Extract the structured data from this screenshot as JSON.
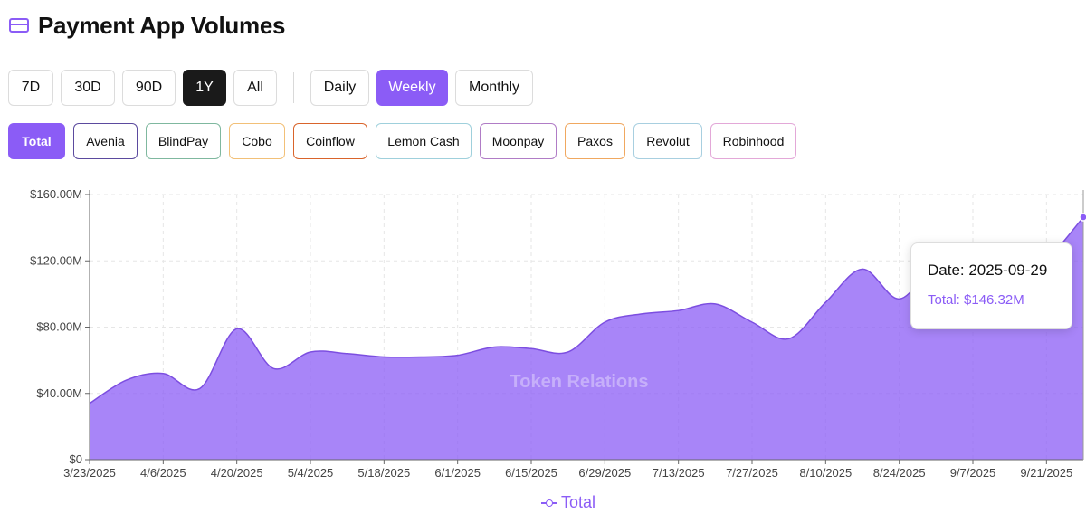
{
  "header": {
    "title": "Payment App Volumes",
    "icon": "credit-card-icon"
  },
  "range_buttons": [
    {
      "label": "7D",
      "active": false
    },
    {
      "label": "30D",
      "active": false
    },
    {
      "label": "90D",
      "active": false
    },
    {
      "label": "1Y",
      "active": true
    },
    {
      "label": "All",
      "active": false
    }
  ],
  "interval_buttons": [
    {
      "label": "Daily",
      "active": false
    },
    {
      "label": "Weekly",
      "active": true
    },
    {
      "label": "Monthly",
      "active": false
    }
  ],
  "filters": [
    {
      "label": "Total",
      "color": "#8b5cf6",
      "active": true
    },
    {
      "label": "Avenia",
      "color": "#5b4a9e",
      "active": false
    },
    {
      "label": "BlindPay",
      "color": "#7fb89f",
      "active": false
    },
    {
      "label": "Cobo",
      "color": "#f2c078",
      "active": false
    },
    {
      "label": "Coinflow",
      "color": "#d9642b",
      "active": false
    },
    {
      "label": "Lemon Cash",
      "color": "#9fd0dc",
      "active": false
    },
    {
      "label": "Moonpay",
      "color": "#b07cc6",
      "active": false
    },
    {
      "label": "Paxos",
      "color": "#f0a860",
      "active": false
    },
    {
      "label": "Revolut",
      "color": "#a8cfe0",
      "active": false
    },
    {
      "label": "Robinhood",
      "color": "#e3a8d8",
      "active": false
    }
  ],
  "chart_data": {
    "type": "area",
    "ylim": [
      0,
      160
    ],
    "y_ticks": [
      0,
      40,
      80,
      120,
      160
    ],
    "y_tick_labels": [
      "$0",
      "$40.00M",
      "$80.00M",
      "$120.00M",
      "$160.00M"
    ],
    "x_tick_labels": [
      "3/23/2025",
      "4/6/2025",
      "4/20/2025",
      "5/4/2025",
      "5/18/2025",
      "6/1/2025",
      "6/15/2025",
      "6/29/2025",
      "7/13/2025",
      "7/27/2025",
      "8/10/2025",
      "8/24/2025",
      "9/7/2025",
      "9/21/2025"
    ],
    "grid": true,
    "legend": "bottom",
    "series": [
      {
        "name": "Total",
        "color": "#8b5cf6",
        "values": [
          34,
          48,
          52,
          43,
          79,
          55,
          65,
          64,
          62,
          62,
          63,
          68,
          67,
          65,
          83,
          88,
          90,
          94,
          83,
          73,
          95,
          115,
          97,
          118,
          118,
          102,
          120,
          146.32
        ]
      }
    ],
    "watermark": "Token Relations",
    "tooltip": {
      "date_label": "Date: 2025-09-29",
      "value_label": "Total: $146.32M"
    }
  }
}
